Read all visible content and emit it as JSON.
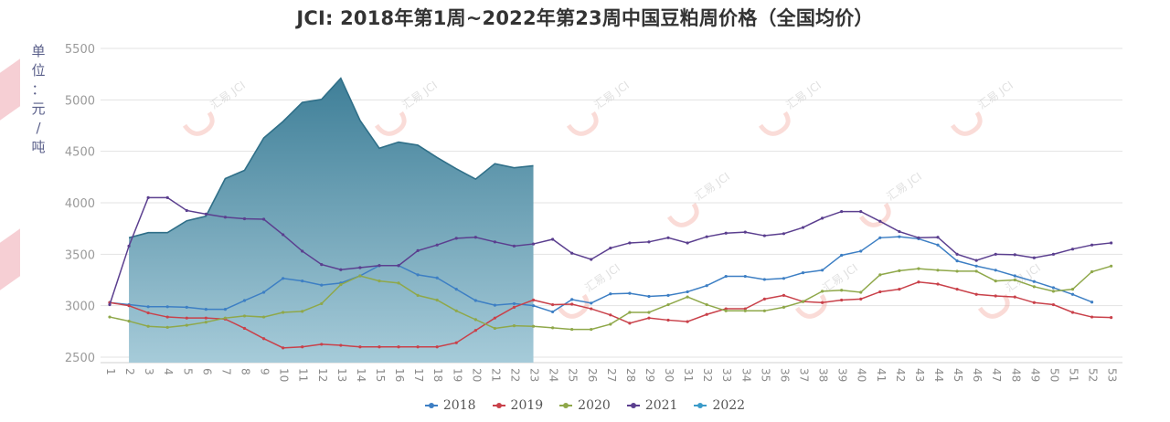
{
  "title": "JCI: 2018年第1周~2022年第23周中国豆粕周价格（全国均价）",
  "y_axis_label_chars": [
    "单",
    "位",
    "：",
    "元",
    "/",
    "吨"
  ],
  "watermark": "汇易 JCI",
  "legend": [
    {
      "label": "2018",
      "color": "#3d7fc4"
    },
    {
      "label": "2019",
      "color": "#c9414a"
    },
    {
      "label": "2020",
      "color": "#8fa84a"
    },
    {
      "label": "2021",
      "color": "#5b3f8f"
    },
    {
      "label": "2022",
      "color": "#3b9bc9"
    }
  ],
  "chart_data": {
    "type": "line",
    "title": "JCI: 2018年第1周~2022年第23周中国豆粕周价格（全国均价）",
    "xlabel": "",
    "ylabel": "单位：元/吨",
    "ylim": [
      2500,
      5500
    ],
    "yticks": [
      2500,
      3000,
      3500,
      4000,
      4500,
      5000,
      5500
    ],
    "grid": true,
    "legend_position": "bottom",
    "x": [
      1,
      2,
      3,
      4,
      5,
      6,
      7,
      8,
      9,
      10,
      11,
      12,
      13,
      14,
      15,
      16,
      17,
      18,
      19,
      20,
      21,
      22,
      23,
      24,
      25,
      26,
      27,
      28,
      29,
      30,
      31,
      32,
      33,
      34,
      35,
      36,
      37,
      38,
      39,
      40,
      41,
      42,
      43,
      44,
      45,
      46,
      47,
      48,
      49,
      50,
      51,
      52,
      53
    ],
    "series": [
      {
        "name": "2018",
        "type": "line",
        "color": "#3d7fc4",
        "values": [
          3030,
          3010,
          2990,
          2990,
          2985,
          2965,
          2965,
          3050,
          3130,
          3265,
          3240,
          3200,
          3220,
          3290,
          3390,
          3390,
          3300,
          3270,
          3160,
          3050,
          3005,
          3020,
          3000,
          2940,
          3060,
          3025,
          3115,
          3120,
          3090,
          3100,
          3135,
          3195,
          3285,
          3285,
          3255,
          3265,
          3320,
          3345,
          3490,
          3530,
          3660,
          3670,
          3650,
          3590,
          3435,
          3385,
          3345,
          3290,
          3235,
          3175,
          3110,
          3035,
          null
        ]
      },
      {
        "name": "2019",
        "type": "line",
        "color": "#c9414a",
        "values": [
          3030,
          3000,
          2930,
          2890,
          2880,
          2880,
          2870,
          2780,
          2680,
          2590,
          2600,
          2625,
          2615,
          2600,
          2600,
          2600,
          2600,
          2600,
          2640,
          2760,
          2880,
          2985,
          3055,
          3010,
          3015,
          2970,
          2910,
          2830,
          2880,
          2860,
          2845,
          2915,
          2970,
          2970,
          3065,
          3100,
          3040,
          3030,
          3055,
          3065,
          3135,
          3160,
          3230,
          3210,
          3160,
          3110,
          3095,
          3085,
          3030,
          3010,
          2935,
          2890,
          2885
        ]
      },
      {
        "name": "2020",
        "type": "line",
        "color": "#8fa84a",
        "values": [
          2890,
          2850,
          2800,
          2790,
          2810,
          2840,
          2880,
          2900,
          2890,
          2935,
          2945,
          3020,
          3205,
          3290,
          3240,
          3220,
          3100,
          3055,
          2950,
          2865,
          2780,
          2805,
          2800,
          2785,
          2770,
          2770,
          2820,
          2935,
          2935,
          3010,
          3085,
          3010,
          2950,
          2950,
          2950,
          2985,
          3040,
          3140,
          3150,
          3130,
          3300,
          3340,
          3360,
          3345,
          3335,
          3335,
          3240,
          3250,
          3185,
          3140,
          3160,
          3330,
          3385
        ]
      },
      {
        "name": "2021",
        "type": "line",
        "color": "#5b3f8f",
        "values": [
          3010,
          3580,
          4050,
          4050,
          3925,
          3890,
          3860,
          3845,
          3840,
          3690,
          3530,
          3400,
          3350,
          3370,
          3390,
          3390,
          3535,
          3590,
          3655,
          3665,
          3620,
          3580,
          3600,
          3645,
          3510,
          3450,
          3560,
          3610,
          3620,
          3660,
          3610,
          3670,
          3705,
          3715,
          3680,
          3700,
          3760,
          3850,
          3915,
          3915,
          3820,
          3720,
          3660,
          3665,
          3500,
          3440,
          3500,
          3495,
          3465,
          3500,
          3550,
          3590,
          3610
        ]
      },
      {
        "name": "2022",
        "type": "area",
        "color": "#3b9bc9",
        "values": [
          null,
          3660,
          3710,
          3710,
          3825,
          3870,
          4235,
          4315,
          4630,
          4790,
          4975,
          5005,
          5210,
          4800,
          4530,
          4590,
          4560,
          4440,
          4330,
          4230,
          4380,
          4340,
          4360
        ]
      }
    ]
  }
}
